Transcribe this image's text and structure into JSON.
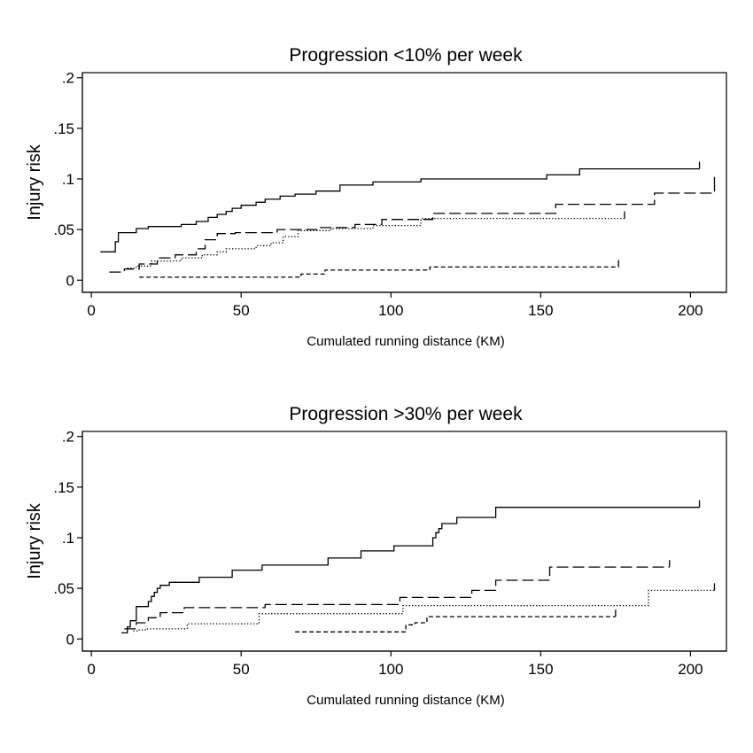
{
  "chart_data": [
    {
      "type": "line",
      "title": "Progression <10% per week",
      "xlabel": "Cumulated running distance (KM)",
      "ylabel": "Injury risk",
      "xlim": [
        -3,
        212
      ],
      "ylim": [
        -0.012,
        0.205
      ],
      "x_ticks": [
        0,
        50,
        100,
        150,
        200
      ],
      "x_tick_labels": [
        "0",
        "50",
        "100",
        "150",
        "200"
      ],
      "y_ticks": [
        0,
        0.05,
        0.1,
        0.15,
        0.2
      ],
      "y_tick_labels": [
        "0",
        ".05",
        ".1",
        ".15",
        ".2"
      ],
      "grid": false,
      "series": [
        {
          "line_style": "solid",
          "x": [
            3,
            8,
            9,
            15,
            19,
            30,
            35,
            39,
            42,
            45,
            47,
            50,
            55,
            58,
            63,
            68,
            75,
            83,
            94,
            110,
            152,
            163,
            203
          ],
          "y": [
            0.028,
            0.038,
            0.047,
            0.051,
            0.053,
            0.055,
            0.058,
            0.062,
            0.065,
            0.068,
            0.071,
            0.074,
            0.077,
            0.08,
            0.083,
            0.085,
            0.088,
            0.094,
            0.097,
            0.1,
            0.104,
            0.11,
            0.11
          ]
        },
        {
          "line_style": "long-dash",
          "x": [
            6,
            11,
            16,
            22,
            28,
            35,
            38,
            42,
            48,
            62,
            76,
            88,
            97,
            114,
            155,
            188,
            208
          ],
          "y": [
            0.008,
            0.011,
            0.016,
            0.022,
            0.025,
            0.031,
            0.04,
            0.046,
            0.047,
            0.05,
            0.052,
            0.055,
            0.06,
            0.066,
            0.075,
            0.086,
            0.095
          ]
        },
        {
          "line_style": "dotted",
          "x": [
            12,
            15,
            20,
            30,
            37,
            42,
            45,
            55,
            60,
            64,
            69,
            80,
            94,
            110,
            178
          ],
          "y": [
            0.012,
            0.014,
            0.019,
            0.022,
            0.025,
            0.028,
            0.031,
            0.034,
            0.037,
            0.043,
            0.049,
            0.051,
            0.054,
            0.061,
            0.061
          ]
        },
        {
          "line_style": "short-dash",
          "x": [
            16,
            70,
            78,
            113,
            176
          ],
          "y": [
            0.003,
            0.006,
            0.01,
            0.013,
            0.013
          ]
        }
      ]
    },
    {
      "type": "line",
      "title": "Progression >30% per week",
      "xlabel": "Cumulated running distance (KM)",
      "ylabel": "Injury risk",
      "xlim": [
        -3,
        212
      ],
      "ylim": [
        -0.012,
        0.205
      ],
      "x_ticks": [
        0,
        50,
        100,
        150,
        200
      ],
      "x_tick_labels": [
        "0",
        "50",
        "100",
        "150",
        "200"
      ],
      "y_ticks": [
        0,
        0.05,
        0.1,
        0.15,
        0.2
      ],
      "y_tick_labels": [
        "0",
        ".05",
        ".1",
        ".15",
        ".2"
      ],
      "grid": false,
      "series": [
        {
          "line_style": "solid",
          "x": [
            10,
            12,
            13,
            15,
            19,
            20,
            21,
            22,
            23,
            26,
            36,
            47,
            57,
            79,
            90,
            101,
            114,
            115,
            116,
            117,
            122,
            135,
            203
          ],
          "y": [
            0.006,
            0.012,
            0.018,
            0.032,
            0.037,
            0.042,
            0.046,
            0.05,
            0.053,
            0.056,
            0.061,
            0.068,
            0.073,
            0.08,
            0.087,
            0.092,
            0.1,
            0.105,
            0.109,
            0.114,
            0.12,
            0.13,
            0.13
          ]
        },
        {
          "line_style": "long-dash",
          "x": [
            11,
            15,
            19,
            23,
            31,
            58,
            103,
            127,
            135,
            153,
            193
          ],
          "y": [
            0.01,
            0.016,
            0.021,
            0.026,
            0.031,
            0.034,
            0.041,
            0.048,
            0.058,
            0.071,
            0.071
          ]
        },
        {
          "line_style": "dotted",
          "x": [
            14,
            16,
            18,
            32,
            56,
            104,
            186,
            208
          ],
          "y": [
            0.008,
            0.009,
            0.01,
            0.015,
            0.025,
            0.033,
            0.048,
            0.048
          ]
        },
        {
          "line_style": "short-dash",
          "x": [
            68,
            105,
            108,
            112,
            175
          ],
          "y": [
            0.007,
            0.014,
            0.016,
            0.022,
            0.022
          ]
        }
      ]
    }
  ]
}
